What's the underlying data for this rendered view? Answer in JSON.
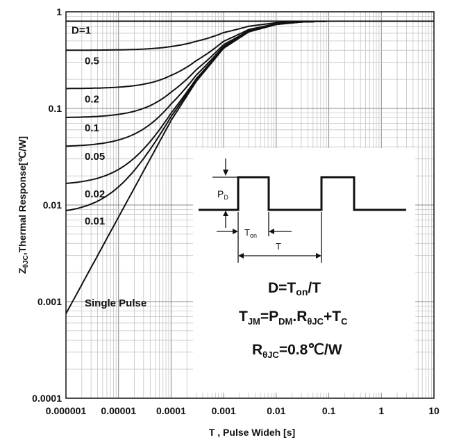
{
  "chart_data": {
    "type": "line",
    "xlabel": "T , Pulse Wideh [s]",
    "ylabel": "Z",
    "ylabel_sub": "θJC",
    "ylabel_rest": ",Thermal Response[℃/W]",
    "xscale": "log",
    "yscale": "log",
    "xlim": [
      1e-06,
      10
    ],
    "ylim": [
      0.0001,
      1
    ],
    "grid": true,
    "x_ticks": [
      "0.000001",
      "0.00001",
      "0.0001",
      "0.001",
      "0.01",
      "0.1",
      "1",
      "10"
    ],
    "y_ticks": [
      "1",
      "0.1",
      "0.01",
      "0.001",
      "0.0001"
    ],
    "steady_state": 0.8,
    "series": [
      {
        "name": "D=1",
        "duty": 1.0
      },
      {
        "name": "0.5",
        "duty": 0.5
      },
      {
        "name": "0.2",
        "duty": 0.2
      },
      {
        "name": "0.1",
        "duty": 0.1
      },
      {
        "name": "0.05",
        "duty": 0.05
      },
      {
        "name": "0.02",
        "duty": 0.02
      },
      {
        "name": "0.01",
        "duty": 0.01
      },
      {
        "name": "Single Pulse",
        "duty": 0,
        "points": [
          [
            1e-06,
            0.00075
          ],
          [
            1e-05,
            0.0075
          ],
          [
            0.0001,
            0.075
          ],
          [
            0.0003,
            0.19
          ],
          [
            0.001,
            0.42
          ],
          [
            0.003,
            0.62
          ],
          [
            0.01,
            0.74
          ],
          [
            0.03,
            0.785
          ],
          [
            0.1,
            0.8
          ],
          [
            10,
            0.8
          ]
        ]
      }
    ],
    "annotations": {
      "pd_label": "P",
      "pd_sub": "D",
      "ton_label": "T",
      "ton_sub": "on",
      "t_label": "T",
      "formula1_a": "D=T",
      "formula1_sub": "on",
      "formula1_b": "/T",
      "formula2_a": "T",
      "formula2_sub1": "JM",
      "formula2_b": "=P",
      "formula2_sub2": "DM",
      "formula2_c": ".R",
      "formula2_sub3": "θJC",
      "formula2_d": "+T",
      "formula2_sub4": "C",
      "formula3_a": "R",
      "formula3_sub": "θJC",
      "formula3_b": "=0.8℃/W"
    }
  }
}
